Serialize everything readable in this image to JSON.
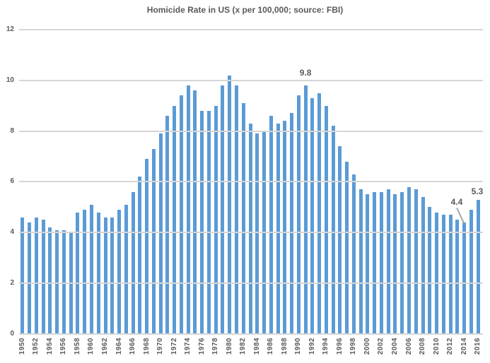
{
  "chart_data": {
    "type": "bar",
    "title": "Homicide Rate in US (x per 100,000; source: FBI)",
    "xlabel": "",
    "ylabel": "",
    "ylim": [
      0,
      12
    ],
    "yticks": [
      0,
      2,
      4,
      6,
      8,
      10,
      12
    ],
    "xtick_label_interval": 2,
    "grid": "horizontal gridlines drawn over bars",
    "legend": "none",
    "categories": [
      1950,
      1951,
      1952,
      1953,
      1954,
      1955,
      1956,
      1957,
      1958,
      1959,
      1960,
      1961,
      1962,
      1963,
      1964,
      1965,
      1966,
      1967,
      1968,
      1969,
      1970,
      1971,
      1972,
      1973,
      1974,
      1975,
      1976,
      1977,
      1978,
      1979,
      1980,
      1981,
      1982,
      1983,
      1984,
      1985,
      1986,
      1987,
      1988,
      1989,
      1990,
      1991,
      1992,
      1993,
      1994,
      1995,
      1996,
      1997,
      1998,
      1999,
      2000,
      2001,
      2002,
      2003,
      2004,
      2005,
      2006,
      2007,
      2008,
      2009,
      2010,
      2011,
      2012,
      2013,
      2014,
      2015,
      2016
    ],
    "values": [
      4.6,
      4.4,
      4.6,
      4.5,
      4.2,
      4.1,
      4.1,
      4.0,
      4.8,
      4.9,
      5.1,
      4.8,
      4.6,
      4.6,
      4.9,
      5.1,
      5.6,
      6.2,
      6.9,
      7.3,
      7.9,
      8.6,
      9.0,
      9.4,
      9.8,
      9.6,
      8.8,
      8.8,
      9.0,
      9.8,
      10.2,
      9.8,
      9.1,
      8.3,
      7.9,
      8.0,
      8.6,
      8.3,
      8.4,
      8.7,
      9.4,
      9.8,
      9.3,
      9.5,
      9.0,
      8.2,
      7.4,
      6.8,
      6.3,
      5.7,
      5.5,
      5.6,
      5.6,
      5.7,
      5.5,
      5.6,
      5.8,
      5.7,
      5.4,
      5.0,
      4.8,
      4.7,
      4.7,
      4.5,
      4.4,
      4.9,
      5.3
    ],
    "annotations": [
      {
        "text": "9.8",
        "year": 1991,
        "value": 9.8,
        "leader_line": false
      },
      {
        "text": "4.4",
        "year": 2014,
        "value": 4.4,
        "leader_line": true
      },
      {
        "text": "5.3",
        "year": 2016,
        "value": 5.3,
        "leader_line": false
      }
    ],
    "colors": {
      "bar": "#5b9bd5",
      "gridline": "#d6d6d6",
      "text": "#595959",
      "leader_line": "#a6a6a6",
      "background": "#ffffff"
    }
  }
}
